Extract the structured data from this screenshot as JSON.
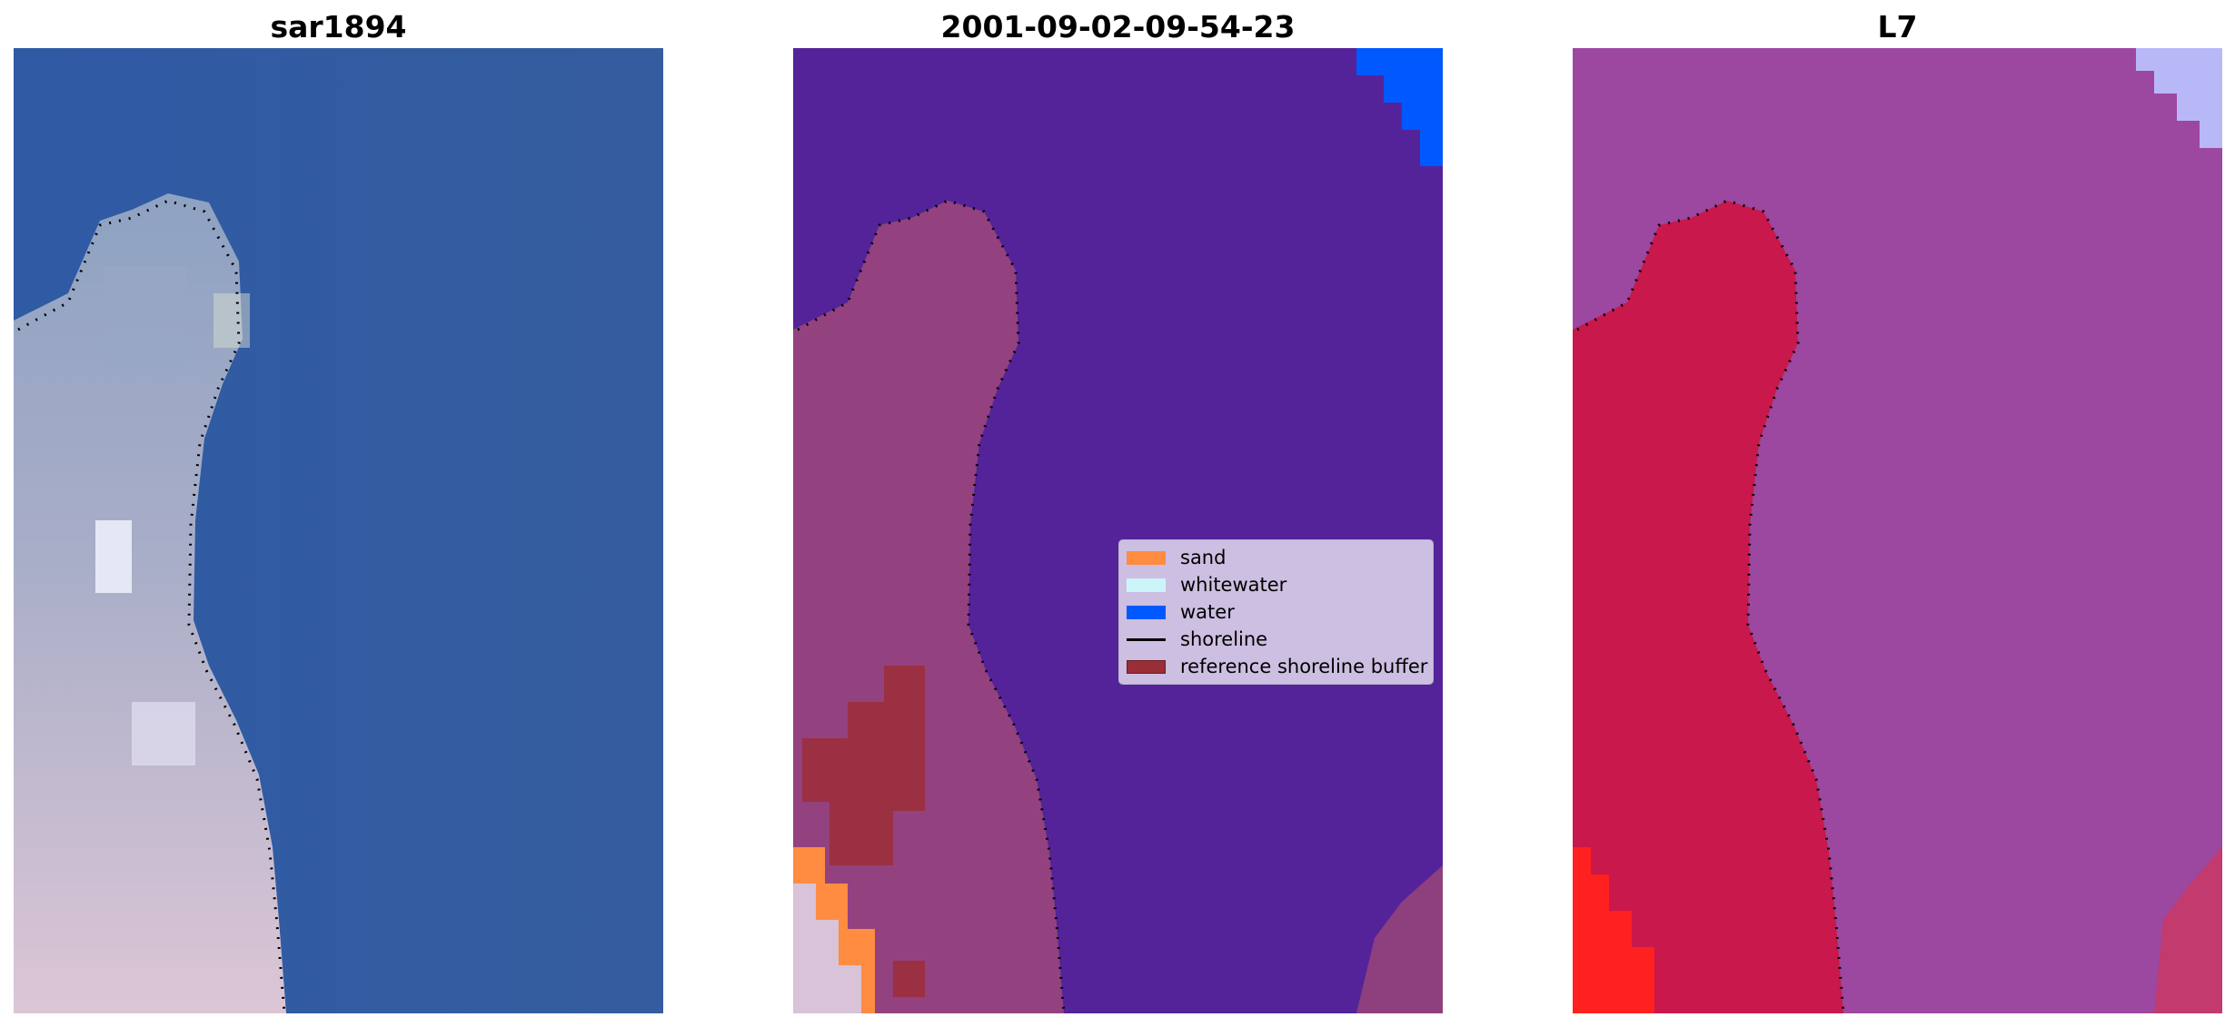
{
  "panels": [
    {
      "title": "sar1894"
    },
    {
      "title": "2001-09-02-09-54-23"
    },
    {
      "title": "L7"
    }
  ],
  "legend": {
    "items": [
      {
        "label": "sand",
        "color": "#ff8c40",
        "kind": "patch"
      },
      {
        "label": "whitewater",
        "color": "#ccf5fa",
        "kind": "patch"
      },
      {
        "label": "water",
        "color": "#0059ff",
        "kind": "patch"
      },
      {
        "label": "shoreline",
        "color": "#000000",
        "kind": "line"
      },
      {
        "label": "reference shoreline buffer",
        "color": "#9b2d36",
        "kind": "patch"
      }
    ]
  },
  "colors": {
    "sea_rgb": "#3a62a6",
    "land_rgb": "#c8c0d6",
    "classified_water_bg": "#54239a",
    "classified_land": "#93427f",
    "ndwi_water": "#9c47a0",
    "ndwi_land": "#c8184c",
    "ndwi_strong_land": "#ff2020",
    "ndwi_corner": "#b8b8f8"
  }
}
